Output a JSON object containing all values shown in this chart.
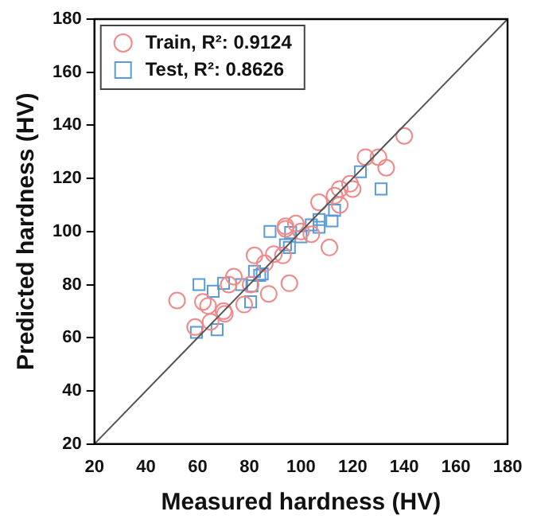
{
  "chart_data": {
    "type": "scatter",
    "xlabel": "Measured hardness (HV)",
    "ylabel": "Predicted hardness (HV)",
    "xlim": [
      20,
      180
    ],
    "ylim": [
      20,
      180
    ],
    "xticks": [
      20,
      40,
      60,
      80,
      100,
      120,
      140,
      160,
      180
    ],
    "yticks": [
      20,
      40,
      60,
      80,
      100,
      120,
      140,
      160,
      180
    ],
    "grid": false,
    "legend": "top left",
    "series": [
      {
        "type": "line",
        "color": "#555555",
        "marker": "none",
        "x": [
          20,
          180
        ],
        "values": [
          20,
          180
        ]
      },
      {
        "name": "Train, R²: 0.9124",
        "color": "#f08a8a",
        "marker": "circle",
        "x": [
          140,
          125,
          130,
          133,
          107,
          113,
          115,
          119,
          120,
          115,
          98,
          94,
          52,
          59,
          62,
          64,
          65,
          70,
          70.5,
          72,
          74,
          78,
          87.5,
          95.5,
          111,
          82,
          86,
          89.5,
          93,
          80.5,
          100,
          104,
          94
        ],
        "values": [
          136,
          128,
          128,
          124,
          111,
          113.5,
          116,
          118,
          116,
          110,
          103,
          101,
          74,
          64,
          73.5,
          72,
          66,
          70,
          69,
          80,
          83,
          72.5,
          76.5,
          80.5,
          94,
          91,
          88,
          91.5,
          91,
          80,
          100,
          99,
          102
        ]
      },
      {
        "name": "Test, R²: 0.8626",
        "color": "#5b9bd5",
        "marker": "square",
        "x": [
          123,
          131,
          88,
          113,
          112,
          107,
          104,
          60.5,
          66,
          70,
          77,
          81,
          80.5,
          59.5,
          67.5,
          82,
          85,
          84,
          94,
          95.5,
          96,
          100,
          107
        ],
        "values": [
          122.5,
          116,
          100,
          108,
          104,
          104.5,
          102.5,
          80,
          77.5,
          80.5,
          80,
          79.5,
          73.5,
          62,
          63,
          85,
          84,
          83.5,
          95,
          94,
          99.6,
          98,
          101.6
        ]
      }
    ]
  }
}
